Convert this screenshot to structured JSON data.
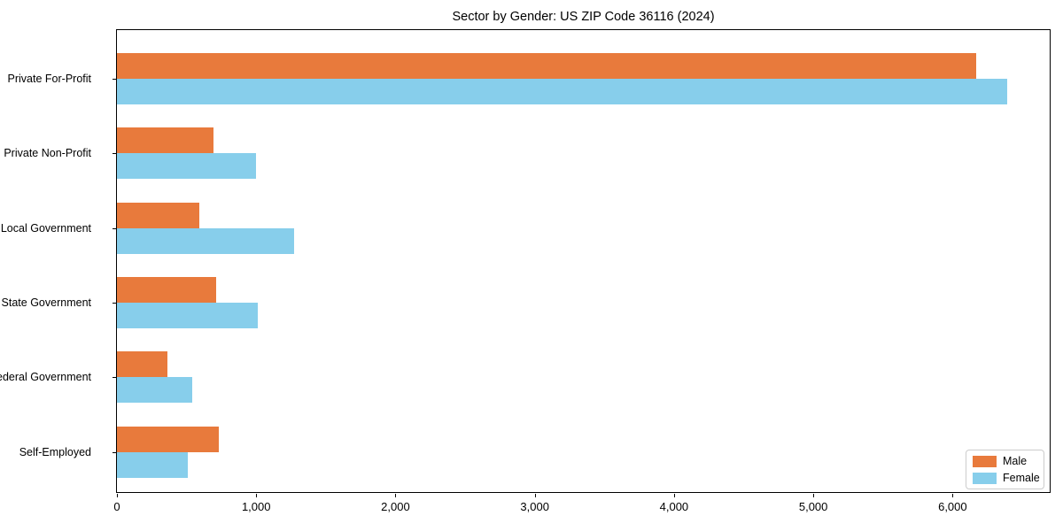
{
  "title": "Sector by Gender: US ZIP Code 36116 (2024)",
  "chart_data": {
    "type": "bar",
    "orientation": "horizontal",
    "title": "Sector by Gender: US ZIP Code 36116 (2024)",
    "categories": [
      "Private For-Profit",
      "Private Non-Profit",
      "Local Government",
      "State Government",
      "Federal Government",
      "Self-Employed"
    ],
    "series": [
      {
        "name": "Male",
        "color": "#e87a3c",
        "values": [
          6170,
          690,
          590,
          710,
          360,
          730
        ]
      },
      {
        "name": "Female",
        "color": "#87ceeb",
        "values": [
          6390,
          1000,
          1270,
          1010,
          540,
          510
        ]
      }
    ],
    "xlabel": "",
    "ylabel": "",
    "xlim": [
      0,
      6710
    ],
    "xticks": [
      0,
      1000,
      2000,
      3000,
      4000,
      5000,
      6000
    ],
    "xtick_labels": [
      "0",
      "1,000",
      "2,000",
      "3,000",
      "4,000",
      "5,000",
      "6,000"
    ],
    "grid": false,
    "legend": {
      "position": "lower right",
      "entries": [
        "Male",
        "Female"
      ]
    },
    "colors": {
      "male": "#e87a3c",
      "female": "#87ceeb",
      "spine": "#000000",
      "legend_border": "#cccccc"
    }
  }
}
